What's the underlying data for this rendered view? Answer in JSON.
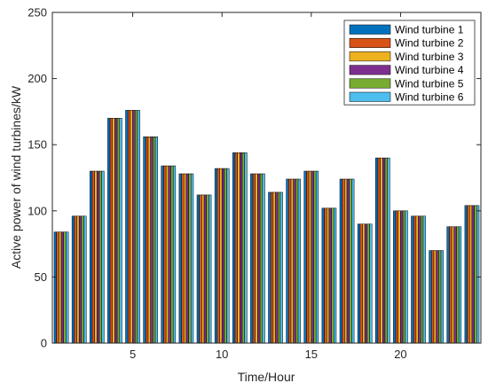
{
  "chart_data": {
    "type": "bar",
    "xlabel": "Time/Hour",
    "ylabel": "Active power of wind turbines/kW",
    "ylim": [
      0,
      250
    ],
    "yticks": [
      0,
      50,
      100,
      150,
      200,
      250
    ],
    "xlim": [
      0.5,
      24.5
    ],
    "xticks": [
      5,
      10,
      15,
      20
    ],
    "grid": false,
    "legend_position": "top-right",
    "categories": [
      1,
      2,
      3,
      4,
      5,
      6,
      7,
      8,
      9,
      10,
      11,
      12,
      13,
      14,
      15,
      16,
      17,
      18,
      19,
      20,
      21,
      22,
      23,
      24
    ],
    "series": [
      {
        "name": "Wind turbine 1",
        "color": "#0072BD",
        "values": [
          84,
          96,
          130,
          170,
          176,
          156,
          134,
          128,
          112,
          132,
          144,
          128,
          114,
          124,
          130,
          102,
          124,
          90,
          140,
          100,
          96,
          70,
          88,
          104
        ]
      },
      {
        "name": "Wind turbine 2",
        "color": "#D95319",
        "values": [
          84,
          96,
          130,
          170,
          176,
          156,
          134,
          128,
          112,
          132,
          144,
          128,
          114,
          124,
          130,
          102,
          124,
          90,
          140,
          100,
          96,
          70,
          88,
          104
        ]
      },
      {
        "name": "Wind turbine 3",
        "color": "#EDB120",
        "values": [
          84,
          96,
          130,
          170,
          176,
          156,
          134,
          128,
          112,
          132,
          144,
          128,
          114,
          124,
          130,
          102,
          124,
          90,
          140,
          100,
          96,
          70,
          88,
          104
        ]
      },
      {
        "name": "Wind turbine 4",
        "color": "#7E2F8E",
        "values": [
          84,
          96,
          130,
          170,
          176,
          156,
          134,
          128,
          112,
          132,
          144,
          128,
          114,
          124,
          130,
          102,
          124,
          90,
          140,
          100,
          96,
          70,
          88,
          104
        ]
      },
      {
        "name": "Wind turbine 5",
        "color": "#77AC30",
        "values": [
          84,
          96,
          130,
          170,
          176,
          156,
          134,
          128,
          112,
          132,
          144,
          128,
          114,
          124,
          130,
          102,
          124,
          90,
          140,
          100,
          96,
          70,
          88,
          104
        ]
      },
      {
        "name": "Wind turbine 6",
        "color": "#4DBEEE",
        "values": [
          84,
          96,
          130,
          170,
          176,
          156,
          134,
          128,
          112,
          132,
          144,
          128,
          114,
          124,
          130,
          102,
          124,
          90,
          140,
          100,
          96,
          70,
          88,
          104
        ]
      }
    ]
  }
}
